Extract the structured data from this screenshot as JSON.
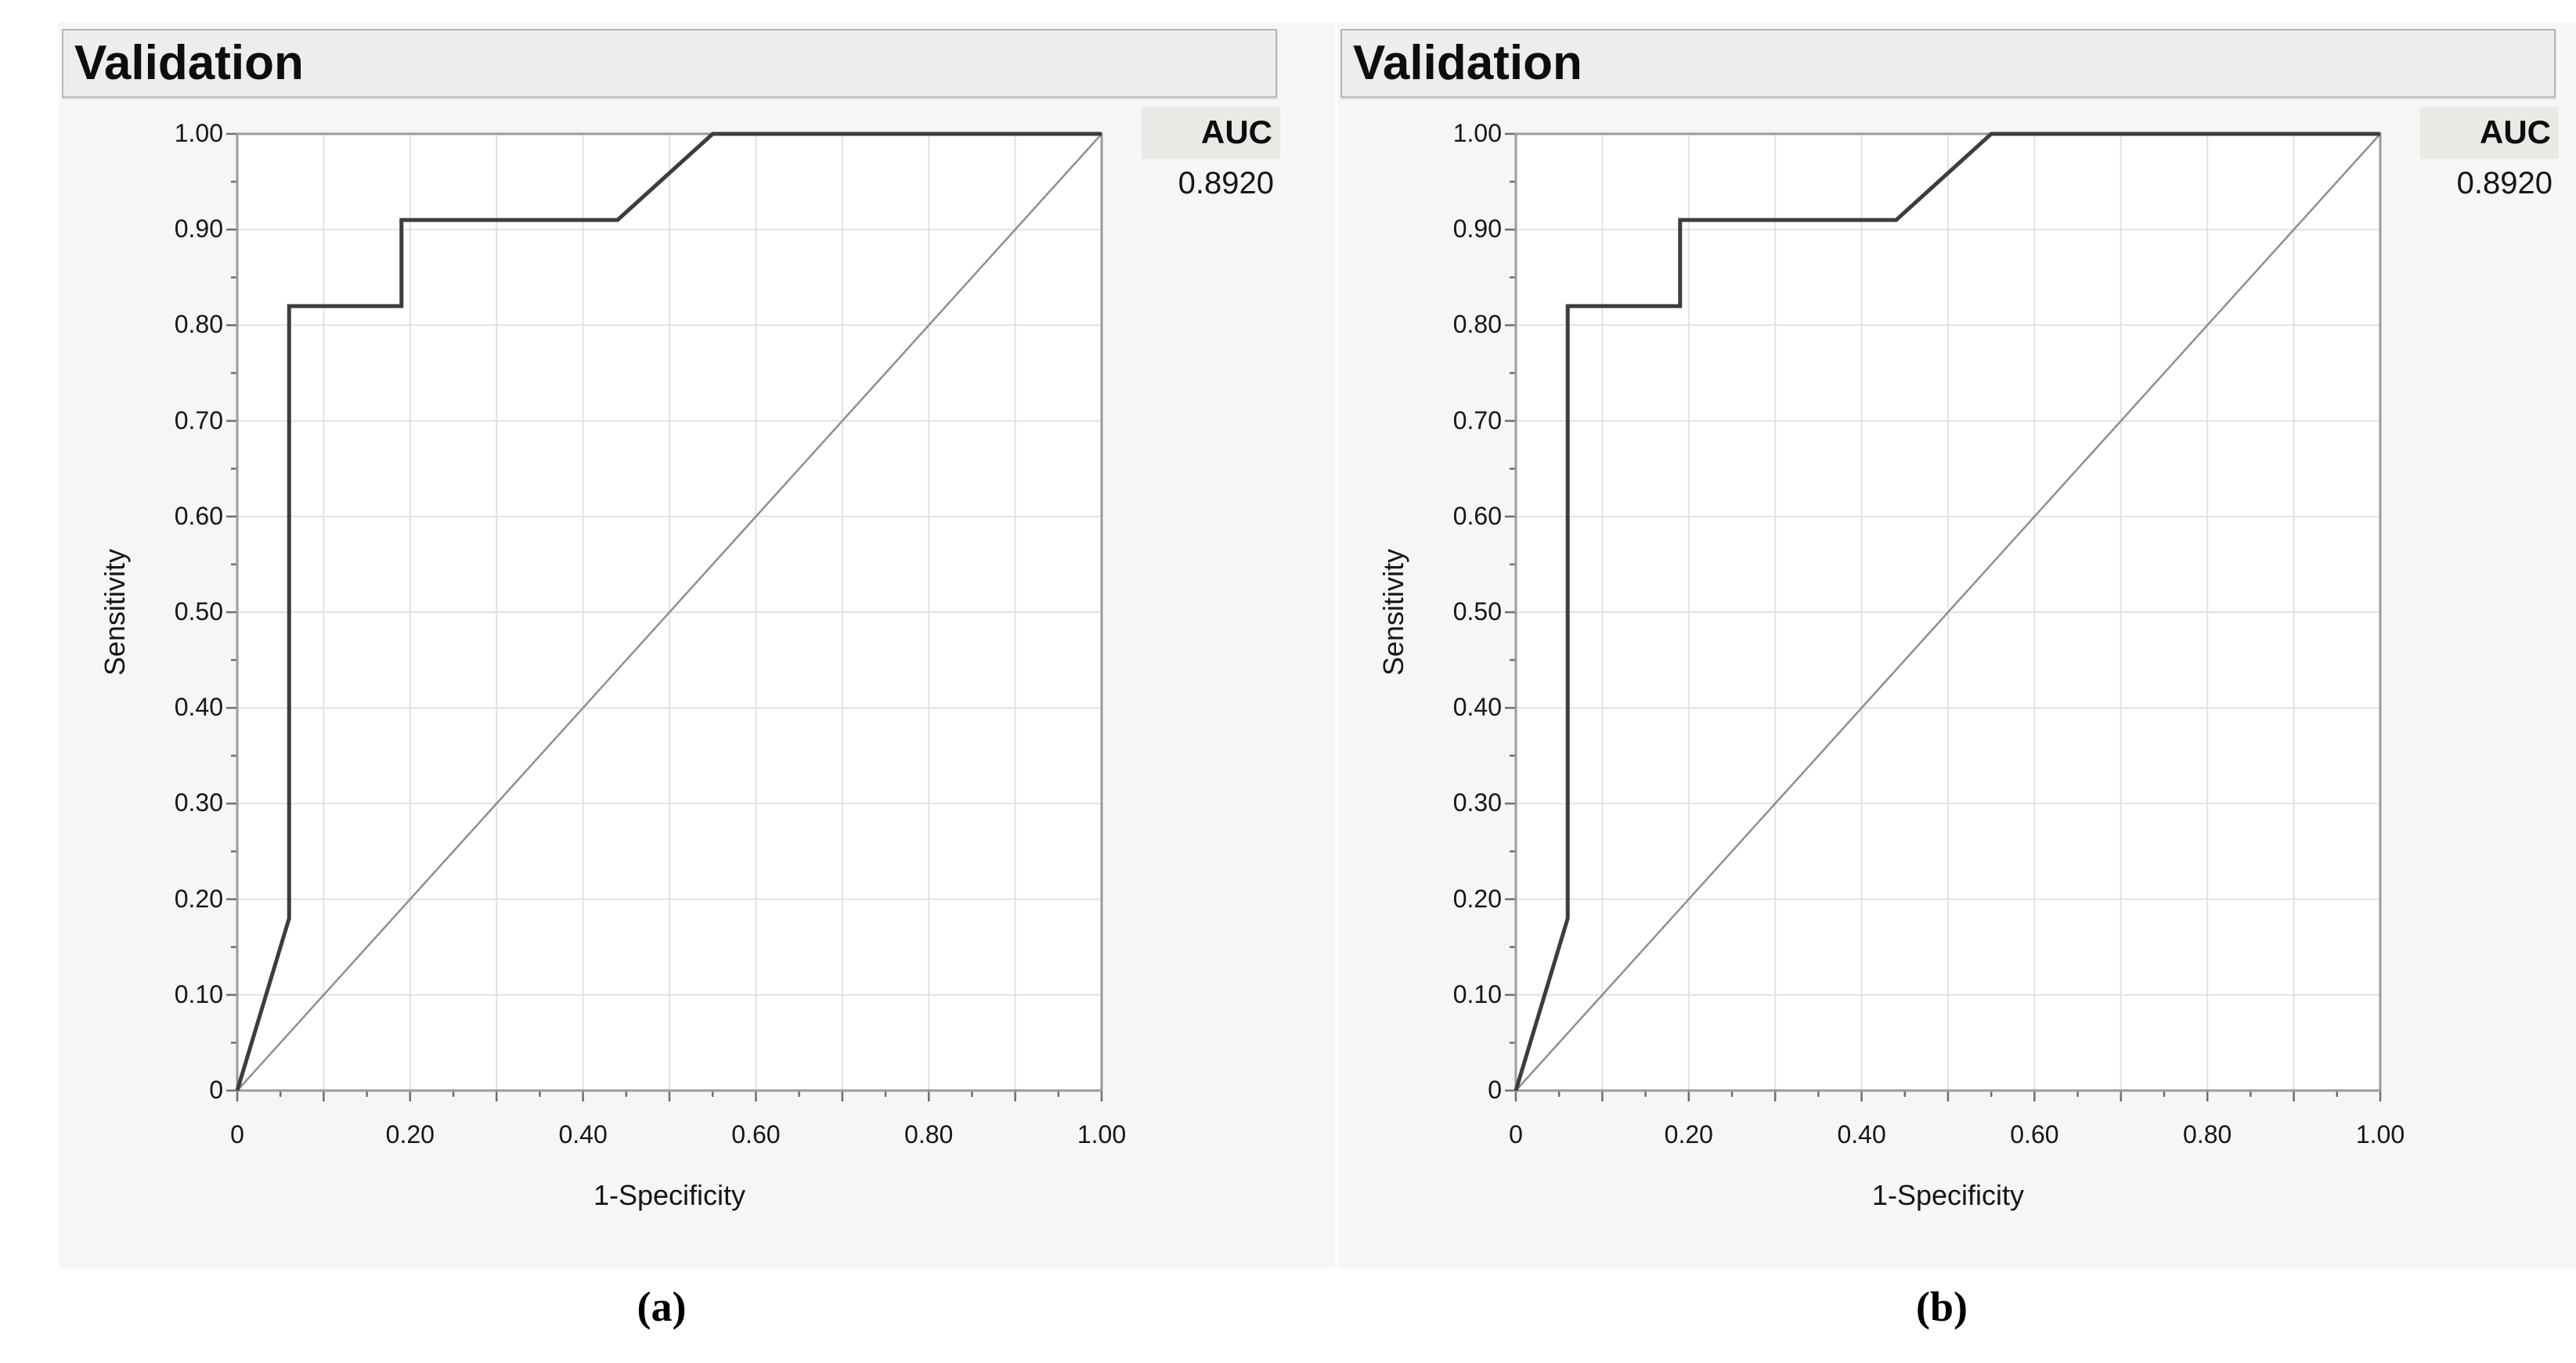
{
  "page": {
    "background": "#ffffff"
  },
  "panels": [
    {
      "id": "a",
      "header_title": "Validation",
      "auc_label": "AUC",
      "auc_value": "0.8920",
      "caption": "(a)"
    },
    {
      "id": "b",
      "header_title": "Validation",
      "auc_label": "AUC",
      "auc_value": "0.8920",
      "caption": "(b)"
    }
  ],
  "chart_data": [
    {
      "type": "line",
      "title": "Validation",
      "subtitle": "",
      "xlabel": "1-Specificity",
      "ylabel": "Sensitivity",
      "xlim": [
        0,
        1
      ],
      "ylim": [
        0,
        1
      ],
      "grid": true,
      "grid_step": 0.1,
      "major_tick_step": 0.1,
      "minor_tick_step": 0.05,
      "legend_position": "none",
      "x_tick_labels": [
        {
          "value": 0.0,
          "label": "0"
        },
        {
          "value": 0.2,
          "label": "0.20"
        },
        {
          "value": 0.4,
          "label": "0.40"
        },
        {
          "value": 0.6,
          "label": "0.60"
        },
        {
          "value": 0.8,
          "label": "0.80"
        },
        {
          "value": 1.0,
          "label": "1.00"
        }
      ],
      "y_tick_labels": [
        {
          "value": 0.0,
          "label": "0"
        },
        {
          "value": 0.1,
          "label": "0.10"
        },
        {
          "value": 0.2,
          "label": "0.20"
        },
        {
          "value": 0.3,
          "label": "0.30"
        },
        {
          "value": 0.4,
          "label": "0.40"
        },
        {
          "value": 0.5,
          "label": "0.50"
        },
        {
          "value": 0.6,
          "label": "0.60"
        },
        {
          "value": 0.7,
          "label": "0.70"
        },
        {
          "value": 0.8,
          "label": "0.80"
        },
        {
          "value": 0.9,
          "label": "0.90"
        },
        {
          "value": 1.0,
          "label": "1.00"
        }
      ],
      "series": [
        {
          "name": "ROC curve",
          "points": [
            [
              0,
              0
            ],
            [
              0.06,
              0.18
            ],
            [
              0.06,
              0.82
            ],
            [
              0.19,
              0.82
            ],
            [
              0.19,
              0.91
            ],
            [
              0.44,
              0.91
            ],
            [
              0.55,
              1.0
            ],
            [
              1.0,
              1.0
            ]
          ]
        },
        {
          "name": "Chance diagonal",
          "points": [
            [
              0,
              0
            ],
            [
              1.0,
              1.0
            ]
          ]
        }
      ],
      "annotations": {
        "auc_label": "AUC",
        "auc_value": "0.8920"
      }
    },
    {
      "type": "line",
      "title": "Validation",
      "subtitle": "",
      "xlabel": "1-Specificity",
      "ylabel": "Sensitivity",
      "xlim": [
        0,
        1
      ],
      "ylim": [
        0,
        1
      ],
      "grid": true,
      "grid_step": 0.1,
      "major_tick_step": 0.1,
      "minor_tick_step": 0.05,
      "legend_position": "none",
      "x_tick_labels": [
        {
          "value": 0.0,
          "label": "0"
        },
        {
          "value": 0.2,
          "label": "0.20"
        },
        {
          "value": 0.4,
          "label": "0.40"
        },
        {
          "value": 0.6,
          "label": "0.60"
        },
        {
          "value": 0.8,
          "label": "0.80"
        },
        {
          "value": 1.0,
          "label": "1.00"
        }
      ],
      "y_tick_labels": [
        {
          "value": 0.0,
          "label": "0"
        },
        {
          "value": 0.1,
          "label": "0.10"
        },
        {
          "value": 0.2,
          "label": "0.20"
        },
        {
          "value": 0.3,
          "label": "0.30"
        },
        {
          "value": 0.4,
          "label": "0.40"
        },
        {
          "value": 0.5,
          "label": "0.50"
        },
        {
          "value": 0.6,
          "label": "0.60"
        },
        {
          "value": 0.7,
          "label": "0.70"
        },
        {
          "value": 0.8,
          "label": "0.80"
        },
        {
          "value": 0.9,
          "label": "0.90"
        },
        {
          "value": 1.0,
          "label": "1.00"
        }
      ],
      "series": [
        {
          "name": "ROC curve",
          "points": [
            [
              0,
              0
            ],
            [
              0.06,
              0.18
            ],
            [
              0.06,
              0.82
            ],
            [
              0.19,
              0.82
            ],
            [
              0.19,
              0.91
            ],
            [
              0.44,
              0.91
            ],
            [
              0.55,
              1.0
            ],
            [
              1.0,
              1.0
            ]
          ]
        },
        {
          "name": "Chance diagonal",
          "points": [
            [
              0,
              0
            ],
            [
              1.0,
              1.0
            ]
          ]
        }
      ],
      "annotations": {
        "auc_label": "AUC",
        "auc_value": "0.8920"
      }
    }
  ],
  "colors": {
    "panel_bg": "#f6f6f6",
    "header_bg": "#ededed",
    "header_border": "#b6b6b6",
    "plot_bg": "#ffffff",
    "plot_frame": "#9b9b9b",
    "gridline": "#e2e2e2",
    "tick": "#6f6f6f",
    "roc_curve": "#3d3d3d",
    "chance_line": "#8f8f8f",
    "text": "#161616"
  }
}
